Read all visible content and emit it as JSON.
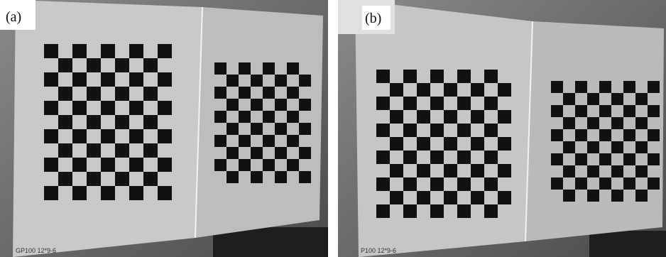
{
  "panels": [
    {
      "label": "(a)",
      "board_text": "GP100 12*9-6"
    },
    {
      "label": "(b)",
      "board_text": "P100 12*9-6"
    }
  ]
}
